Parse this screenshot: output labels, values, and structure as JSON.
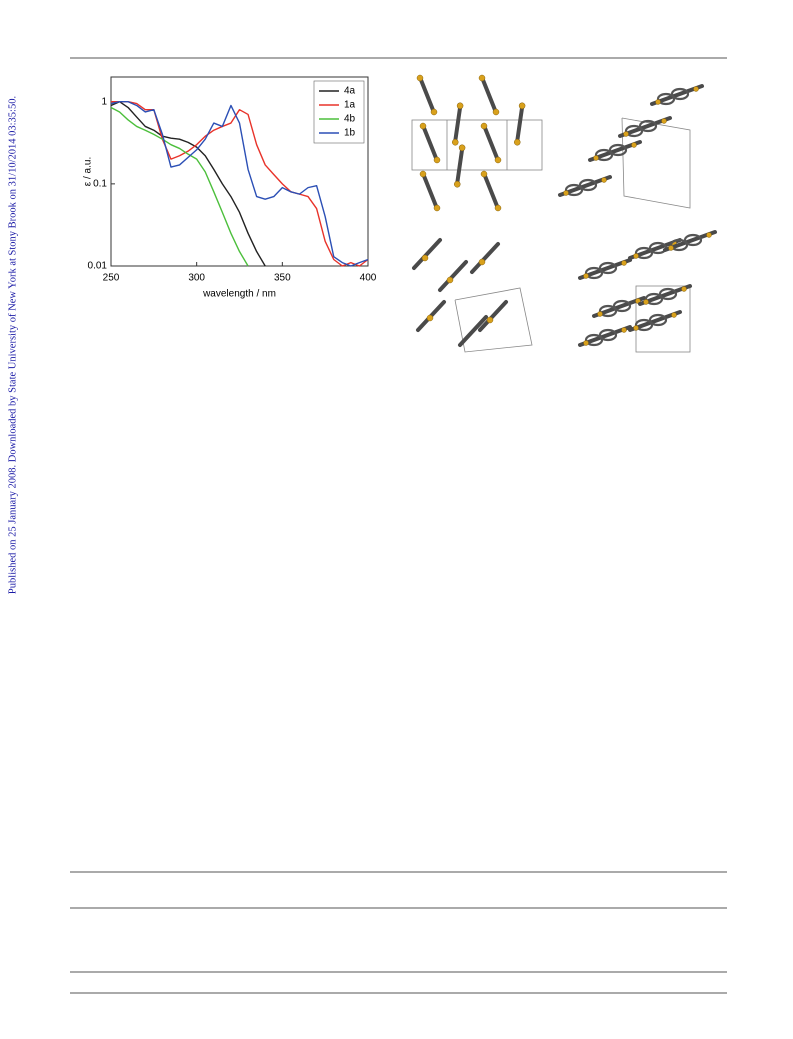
{
  "sidebar_text": "Published on 25 January 2008. Downloaded by State University of New York at Stony Brook on 31/10/2014 03:35:50.",
  "chart_data": {
    "type": "line",
    "x_label": "wavelength / nm",
    "y_label": "ε / a.u.",
    "x": [
      250,
      255,
      260,
      265,
      270,
      275,
      280,
      285,
      290,
      295,
      300,
      305,
      310,
      315,
      320,
      325,
      330,
      335,
      340,
      345,
      350,
      355,
      360,
      365,
      370,
      375,
      380,
      385,
      390,
      395,
      400
    ],
    "xlim": [
      250,
      400
    ],
    "xticks": [
      250,
      300,
      350,
      400
    ],
    "ylim": [
      0.01,
      2
    ],
    "yticks": [
      0.01,
      0.1,
      1
    ],
    "log_scale": true,
    "legend": "top-right",
    "series": [
      {
        "name": "4a",
        "color": "#222222",
        "values": [
          0.9,
          1,
          0.85,
          0.65,
          0.5,
          0.45,
          0.38,
          0.36,
          0.35,
          0.32,
          0.28,
          0.22,
          0.15,
          0.1,
          0.07,
          0.045,
          0.025,
          0.015,
          0.01,
          null,
          null,
          null,
          null,
          null,
          null,
          null,
          null,
          null,
          null,
          null,
          null
        ]
      },
      {
        "name": "1a",
        "color": "#e8332a",
        "values": [
          1,
          1,
          1,
          0.95,
          0.8,
          0.8,
          0.35,
          0.2,
          0.22,
          0.25,
          0.3,
          0.38,
          0.45,
          0.5,
          0.55,
          0.8,
          0.7,
          0.3,
          0.17,
          0.13,
          0.1,
          0.08,
          0.075,
          0.07,
          0.05,
          0.02,
          0.012,
          0.01,
          0.011,
          0.01,
          0.012
        ]
      },
      {
        "name": "4b",
        "color": "#4cbf3c",
        "values": [
          0.85,
          0.75,
          0.6,
          0.5,
          0.45,
          0.4,
          0.35,
          0.3,
          0.27,
          0.23,
          0.2,
          0.14,
          0.08,
          0.045,
          0.025,
          0.015,
          0.01,
          null,
          null,
          null,
          null,
          null,
          null,
          null,
          null,
          null,
          null,
          null,
          null,
          null,
          null
        ]
      },
      {
        "name": "1b",
        "color": "#2b4fb5",
        "values": [
          0.95,
          1,
          1,
          0.9,
          0.75,
          0.8,
          0.4,
          0.16,
          0.17,
          0.21,
          0.26,
          0.35,
          0.55,
          0.5,
          0.9,
          0.55,
          0.15,
          0.07,
          0.065,
          0.07,
          0.09,
          0.08,
          0.075,
          0.09,
          0.095,
          0.04,
          0.013,
          0.011,
          0.01,
          0.011,
          0.012
        ]
      }
    ]
  }
}
